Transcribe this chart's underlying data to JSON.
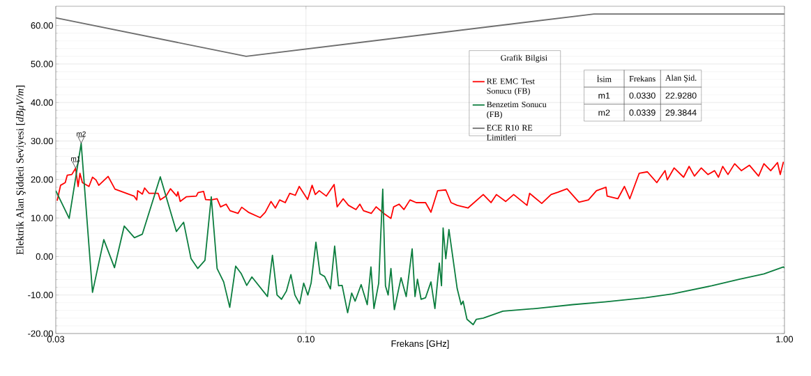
{
  "chart_data": {
    "type": "line",
    "xlabel": "Frekans [GHz]",
    "ylabel": "Elektrik Alan Şiddeti Seviyesi [*dBμV/m*]",
    "legend_title": "Grafik Bilgisi",
    "log": "x",
    "grid": true,
    "legend": "top",
    "xlim": [
      0.03,
      1.0
    ],
    "ylim": [
      -20,
      65
    ],
    "xticks": [
      {
        "value": 0.03,
        "label": "0.03"
      },
      {
        "value": 0.1,
        "label": "0.10"
      },
      {
        "value": 1.0,
        "label": "1.00"
      }
    ],
    "yticks": [
      {
        "value": -20,
        "label": "-20.00"
      },
      {
        "value": -10,
        "label": "-10.00"
      },
      {
        "value": 0,
        "label": "0.00"
      },
      {
        "value": 10,
        "label": "10.00"
      },
      {
        "value": 20,
        "label": "20.00"
      },
      {
        "value": 30,
        "label": "30.00"
      },
      {
        "value": 40,
        "label": "40.00"
      },
      {
        "value": 50,
        "label": "50.00"
      },
      {
        "value": 60,
        "label": "60.00"
      }
    ],
    "series": [
      {
        "name": "RE EMC Test Sonucu (FB)",
        "color": "#ff0000",
        "x": [
          0.0302,
          0.0307,
          0.0314,
          0.0317,
          0.0324,
          0.033,
          0.0334,
          0.0337,
          0.0341,
          0.0352,
          0.0358,
          0.0364,
          0.0369,
          0.0386,
          0.0399,
          0.0437,
          0.0443,
          0.0445,
          0.0455,
          0.046,
          0.047,
          0.0491,
          0.0496,
          0.051,
          0.0521,
          0.0537,
          0.054,
          0.0546,
          0.0562,
          0.059,
          0.0595,
          0.0611,
          0.0617,
          0.0633,
          0.0652,
          0.0663,
          0.0681,
          0.0694,
          0.0721,
          0.0734,
          0.0758,
          0.0802,
          0.0822,
          0.0845,
          0.0863,
          0.0881,
          0.0905,
          0.0925,
          0.095,
          0.0968,
          0.1008,
          0.103,
          0.1046,
          0.1066,
          0.1103,
          0.1145,
          0.1162,
          0.1196,
          0.1227,
          0.1272,
          0.1296,
          0.1319,
          0.1369,
          0.1402,
          0.1454,
          0.1505,
          0.1525,
          0.1565,
          0.1602,
          0.165,
          0.17,
          0.1778,
          0.1825,
          0.1885,
          0.196,
          0.201,
          0.207,
          0.218,
          0.2347,
          0.2436,
          0.25,
          0.2614,
          0.2717,
          0.2897,
          0.2934,
          0.311,
          0.3253,
          0.336,
          0.3512,
          0.372,
          0.3893,
          0.4047,
          0.4236,
          0.426,
          0.4485,
          0.463,
          0.475,
          0.4875,
          0.497,
          0.517,
          0.541,
          0.563,
          0.569,
          0.588,
          0.6155,
          0.632,
          0.6485,
          0.67,
          0.692,
          0.7145,
          0.728,
          0.743,
          0.762,
          0.787,
          0.813,
          0.845,
          0.883,
          0.906,
          0.936,
          0.967,
          0.98,
          0.995
        ],
        "values": [
          14.5,
          18.5,
          19.2,
          21.1,
          21.3,
          22.9,
          18.2,
          21.6,
          19.2,
          18.2,
          20.6,
          19.9,
          18.5,
          20.8,
          17.5,
          15.7,
          14.7,
          17.1,
          16.2,
          17.8,
          16.4,
          16.4,
          14.7,
          15.7,
          17.6,
          15.7,
          16.8,
          14.3,
          15.5,
          15.7,
          16.6,
          16.9,
          14.8,
          14.7,
          15.0,
          12.9,
          13.6,
          11.9,
          11.2,
          12.8,
          11.5,
          10.1,
          11.5,
          14.3,
          12.6,
          14.7,
          14.0,
          16.4,
          15.9,
          18.2,
          14.8,
          18.5,
          16.1,
          17.1,
          15.7,
          18.7,
          12.9,
          15.0,
          13.3,
          12.2,
          13.6,
          11.9,
          11.2,
          12.9,
          11.2,
          9.9,
          12.9,
          13.6,
          12.2,
          14.7,
          14.0,
          14.0,
          11.5,
          17.1,
          17.3,
          14.0,
          13.3,
          12.6,
          16.1,
          14.0,
          16.1,
          14.3,
          16.1,
          13.3,
          16.4,
          13.8,
          16.1,
          16.7,
          17.6,
          14.1,
          14.7,
          17.1,
          18.0,
          15.7,
          15.0,
          18.2,
          15.0,
          18.8,
          21.6,
          22.0,
          19.2,
          22.3,
          19.9,
          23.0,
          20.6,
          23.4,
          20.9,
          23.0,
          21.3,
          22.3,
          20.6,
          23.4,
          21.3,
          24.1,
          22.3,
          23.7,
          20.9,
          24.1,
          22.3,
          24.4,
          21.3,
          24.6
        ]
      },
      {
        "name": "Benzetim Sonucu (FB)",
        "color": "#0b7d3e",
        "x": [
          0.03,
          0.032,
          0.0339,
          0.0358,
          0.0378,
          0.0398,
          0.0417,
          0.0438,
          0.0455,
          0.0496,
          0.0536,
          0.0555,
          0.0575,
          0.0594,
          0.0615,
          0.0634,
          0.0652,
          0.0673,
          0.0693,
          0.0713,
          0.0732,
          0.0752,
          0.0771,
          0.0831,
          0.0851,
          0.087,
          0.0889,
          0.091,
          0.093,
          0.0948,
          0.097,
          0.0989,
          0.1009,
          0.1025,
          0.1049,
          0.107,
          0.1094,
          0.1125,
          0.1148,
          0.117,
          0.119,
          0.1222,
          0.1246,
          0.1267,
          0.1304,
          0.1343,
          0.1367,
          0.1387,
          0.1419,
          0.1447,
          0.1466,
          0.1485,
          0.1505,
          0.153,
          0.158,
          0.162,
          0.1667,
          0.169,
          0.171,
          0.174,
          0.1778,
          0.1825,
          0.186,
          0.19,
          0.192,
          0.1935,
          0.196,
          0.199,
          0.207,
          0.211,
          0.213,
          0.217,
          0.2236,
          0.227,
          0.2347,
          0.258,
          0.302,
          0.361,
          0.421,
          0.512,
          0.583,
          0.705,
          0.804,
          0.906,
          0.995,
          1.0
        ],
        "values": [
          17.1,
          9.9,
          29.4,
          -9.3,
          4.4,
          -2.9,
          7.9,
          4.9,
          5.8,
          20.7,
          6.5,
          8.9,
          -0.5,
          -3.1,
          -1.0,
          15.5,
          -3.1,
          -6.6,
          -13.2,
          -2.5,
          -4.4,
          -7.5,
          -5.3,
          -10.4,
          0.3,
          -10.0,
          -11.1,
          -9.0,
          -4.7,
          -10.0,
          -12.3,
          -6.9,
          -10.0,
          -6.9,
          3.7,
          -4.5,
          -5.2,
          -8.4,
          2.7,
          -7.6,
          -7.5,
          -14.6,
          -9.5,
          -11.6,
          -7.3,
          -12.5,
          -2.7,
          -13.5,
          -6.9,
          17.5,
          -7.6,
          -10.0,
          -3.1,
          -13.8,
          -5.5,
          -10.4,
          2.0,
          -10.4,
          -5.9,
          -11.1,
          -10.7,
          -6.6,
          -13.5,
          -1.7,
          -7.6,
          7.4,
          -0.6,
          7.0,
          -8.3,
          -12.5,
          -11.6,
          -16.3,
          -17.7,
          -16.3,
          -16.0,
          -14.2,
          -13.5,
          -12.5,
          -11.8,
          -10.7,
          -9.7,
          -7.6,
          -5.9,
          -4.5,
          -2.7,
          -3.0
        ]
      },
      {
        "name": "ECE R10 RE Limitleri",
        "color": "#6e6e6e",
        "x": [
          0.03,
          0.075,
          0.4,
          1.0
        ],
        "values": [
          62,
          52,
          63,
          63
        ]
      }
    ],
    "annotations": [
      {
        "text": "m1",
        "x": 0.033,
        "y": 22.928
      },
      {
        "text": "m2",
        "x": 0.0339,
        "y": 29.3844
      },
      "İsim",
      "Frekans",
      "Alan Şid.",
      "m1",
      "0.0330",
      "22.9280",
      "m2",
      "0.0339",
      "29.3844"
    ]
  }
}
